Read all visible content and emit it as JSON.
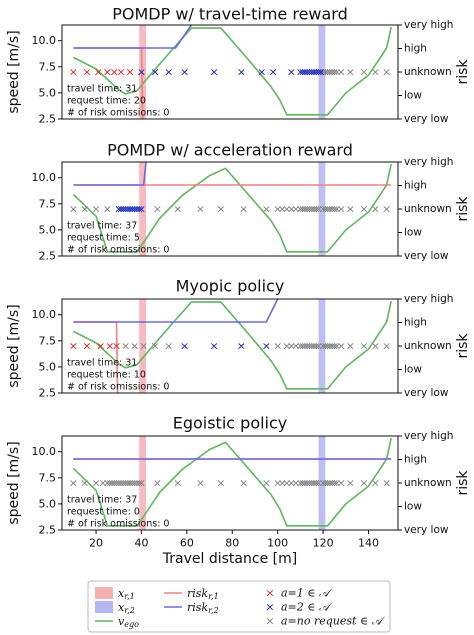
{
  "chart_data": [
    {
      "type": "line",
      "title": "POMDP w/ travel-time reward",
      "ylabel": "speed [m/s]",
      "y2label": "risk",
      "xlim": [
        5,
        153
      ],
      "ylim": [
        2.5,
        11.5
      ],
      "yticks": [
        "2.5",
        "5.0",
        "7.5",
        "10.0"
      ],
      "y2ticks": [
        "very low",
        "low",
        "unknown",
        "high",
        "very high"
      ],
      "info": [
        "travel time: 31",
        "request time: 20",
        "# of risk omissions: 0"
      ],
      "spans": [
        {
          "name": "x_r,1",
          "from": 39,
          "to": 42,
          "color": "#f4a3a8"
        },
        {
          "name": "x_r,2",
          "from": 118,
          "to": 121,
          "color": "#a9aaf0"
        }
      ],
      "risk1": {
        "x": [
          10,
          40,
          40.5
        ],
        "y": [
          9.3,
          9.3,
          2.5
        ]
      },
      "risk2": {
        "x": [
          10,
          55,
          62
        ],
        "y": [
          9.3,
          9.3,
          11.5
        ]
      },
      "speed": {
        "x": [
          10,
          20,
          30,
          33,
          38,
          45,
          55,
          62,
          75,
          87,
          97,
          101,
          104,
          110,
          122,
          130,
          140,
          145,
          148,
          150
        ],
        "y": [
          8.4,
          7.3,
          5.3,
          4.9,
          5.2,
          7.0,
          9.5,
          11.2,
          11.2,
          8.2,
          5.6,
          4.3,
          2.9,
          2.9,
          2.9,
          5.0,
          6.7,
          8.3,
          9.3,
          11.3
        ]
      },
      "markers": {
        "red": [
          10,
          16,
          21,
          25,
          28,
          31,
          35
        ],
        "blue": [
          40,
          46,
          52,
          59,
          72,
          84,
          93,
          98,
          106,
          110,
          111,
          112,
          113,
          114,
          115,
          116,
          117,
          118,
          119
        ],
        "gray": [
          120,
          121,
          122,
          123,
          124,
          125,
          126,
          128,
          132,
          138,
          143,
          148
        ]
      }
    },
    {
      "type": "line",
      "title": "POMDP w/ acceleration reward",
      "ylabel": "",
      "y2label": "risk",
      "xlim": [
        5,
        153
      ],
      "ylim": [
        2.5,
        11.5
      ],
      "yticks": [
        "2.5",
        "5.0",
        "7.5",
        "10.0"
      ],
      "y2ticks": [
        "very low",
        "low",
        "unknown",
        "high",
        "very high"
      ],
      "info": [
        "travel time: 37",
        "request time: 5",
        "# of risk omissions: 0"
      ],
      "spans": [
        {
          "name": "x_r,1",
          "from": 39,
          "to": 42,
          "color": "#f4a3a8"
        },
        {
          "name": "x_r,2",
          "from": 118,
          "to": 121,
          "color": "#a9aaf0"
        }
      ],
      "risk1": {
        "x": [
          10,
          150
        ],
        "y": [
          9.3,
          9.3
        ]
      },
      "risk2": {
        "x": [
          10,
          41,
          42
        ],
        "y": [
          9.3,
          9.3,
          11.5
        ]
      },
      "speed": {
        "x": [
          10,
          20,
          25,
          33,
          38,
          40,
          48,
          58,
          70,
          77,
          87,
          97,
          101,
          104,
          110,
          122,
          130,
          140,
          145,
          148,
          150
        ],
        "y": [
          8.4,
          6.3,
          2.9,
          2.9,
          2.9,
          3.5,
          6.1,
          8.3,
          10.2,
          10.9,
          8.4,
          5.9,
          4.5,
          2.9,
          2.9,
          2.9,
          5.0,
          6.7,
          8.3,
          9.3,
          11.3
        ]
      },
      "markers": {
        "red": [],
        "blue": [
          30,
          31,
          32,
          33,
          34,
          35,
          36,
          37,
          38,
          39,
          40
        ],
        "gray": [
          10,
          15,
          20,
          25,
          47,
          56,
          66,
          75,
          85,
          95,
          100,
          102,
          104,
          106,
          108,
          110,
          111,
          112,
          113,
          114,
          115,
          116,
          117,
          118,
          120,
          121,
          122,
          123,
          124,
          125,
          126,
          128,
          132,
          138,
          143,
          148
        ]
      }
    },
    {
      "type": "line",
      "title": "Myopic policy",
      "ylabel": "speed [m/s]",
      "y2label": "risk",
      "xlim": [
        5,
        153
      ],
      "ylim": [
        2.5,
        11.5
      ],
      "yticks": [
        "2.5",
        "5.0",
        "7.5",
        "10.0"
      ],
      "y2ticks": [
        "very low",
        "low",
        "unknown",
        "high",
        "very high"
      ],
      "info": [
        "travel time: 31",
        "request time: 10",
        "# of risk omissions: 0"
      ],
      "spans": [
        {
          "name": "x_r,1",
          "from": 39,
          "to": 42,
          "color": "#f4a3a8"
        },
        {
          "name": "x_r,2",
          "from": 118,
          "to": 121,
          "color": "#a9aaf0"
        }
      ],
      "risk1": {
        "x": [
          10,
          29,
          29.5
        ],
        "y": [
          9.3,
          9.3,
          2.5
        ]
      },
      "risk2": {
        "x": [
          10,
          95,
          100
        ],
        "y": [
          9.3,
          9.3,
          11.5
        ]
      },
      "speed": {
        "x": [
          10,
          20,
          30,
          33,
          38,
          45,
          55,
          62,
          75,
          87,
          97,
          101,
          104,
          110,
          122,
          130,
          140,
          145,
          148,
          150
        ],
        "y": [
          8.4,
          7.3,
          5.3,
          4.9,
          5.2,
          7.0,
          9.5,
          11.2,
          11.2,
          8.2,
          5.6,
          4.3,
          2.9,
          2.9,
          2.9,
          5.0,
          6.7,
          8.3,
          9.3,
          11.3
        ]
      },
      "markers": {
        "red": [
          10,
          16,
          22,
          26,
          29
        ],
        "blue": [
          59,
          72,
          84,
          95
        ],
        "gray": [
          33,
          37,
          41,
          46,
          52,
          100,
          104,
          106,
          108,
          110,
          111,
          112,
          113,
          114,
          115,
          116,
          117,
          118,
          120,
          121,
          122,
          123,
          124,
          125,
          126,
          128,
          132,
          138,
          143,
          148
        ]
      }
    },
    {
      "type": "line",
      "title": "Egoistic policy",
      "ylabel": "speed [m/s]",
      "y2label": "risk",
      "xlabel": "Travel distance [m]",
      "xticks": [
        "20",
        "40",
        "60",
        "80",
        "100",
        "120",
        "140"
      ],
      "xlim": [
        5,
        153
      ],
      "ylim": [
        2.5,
        11.5
      ],
      "yticks": [
        "2.5",
        "5.0",
        "7.5",
        "10.0"
      ],
      "y2ticks": [
        "very low",
        "low",
        "unknown",
        "high",
        "very high"
      ],
      "info": [
        "travel time: 37",
        "request time: 0",
        "# of risk omissions: 0"
      ],
      "spans": [
        {
          "name": "x_r,1",
          "from": 39,
          "to": 42,
          "color": "#f4a3a8"
        },
        {
          "name": "x_r,2",
          "from": 118,
          "to": 121,
          "color": "#a9aaf0"
        }
      ],
      "risk1": {
        "x": [
          10,
          150
        ],
        "y": [
          9.3,
          9.3
        ]
      },
      "risk2": {
        "x": [
          10,
          150
        ],
        "y": [
          9.3,
          9.3
        ]
      },
      "speed": {
        "x": [
          10,
          20,
          25,
          33,
          38,
          40,
          48,
          58,
          70,
          77,
          87,
          97,
          101,
          104,
          110,
          122,
          130,
          140,
          145,
          148,
          150
        ],
        "y": [
          8.4,
          6.3,
          2.9,
          2.9,
          2.9,
          3.5,
          6.1,
          8.3,
          10.2,
          10.9,
          8.4,
          5.9,
          4.5,
          2.9,
          2.9,
          2.9,
          5.0,
          6.7,
          8.3,
          9.3,
          11.3
        ]
      },
      "markers": {
        "red": [],
        "blue": [],
        "gray": [
          10,
          15,
          20,
          23,
          25,
          26,
          27,
          28,
          29,
          30,
          31,
          32,
          33,
          34,
          35,
          36,
          37,
          38,
          39,
          40,
          47,
          56,
          66,
          75,
          85,
          95,
          100,
          102,
          104,
          106,
          108,
          110,
          111,
          112,
          113,
          114,
          115,
          116,
          117,
          118,
          120,
          121,
          122,
          123,
          124,
          125,
          126,
          128,
          132,
          138,
          143,
          148
        ]
      }
    }
  ],
  "colors": {
    "risk1": "#f08080",
    "risk2": "#6a6ae8",
    "speed": "#5cb85c",
    "red_x": "#e02020",
    "blue_x": "#1020c0",
    "gray_x": "#808080"
  },
  "legend": {
    "col1": [
      {
        "main": "x",
        "sub": "r,1"
      },
      {
        "main": "x",
        "sub": "r,2"
      },
      {
        "main": "v",
        "sub": "ego"
      }
    ],
    "col2": [
      {
        "main": "risk",
        "sub": "r,1"
      },
      {
        "main": "risk",
        "sub": "r,2"
      }
    ],
    "col3": [
      "a=1 ∈ 𝒜",
      "a=2 ∈ 𝒜",
      "a=no request ∈ 𝒜"
    ]
  }
}
